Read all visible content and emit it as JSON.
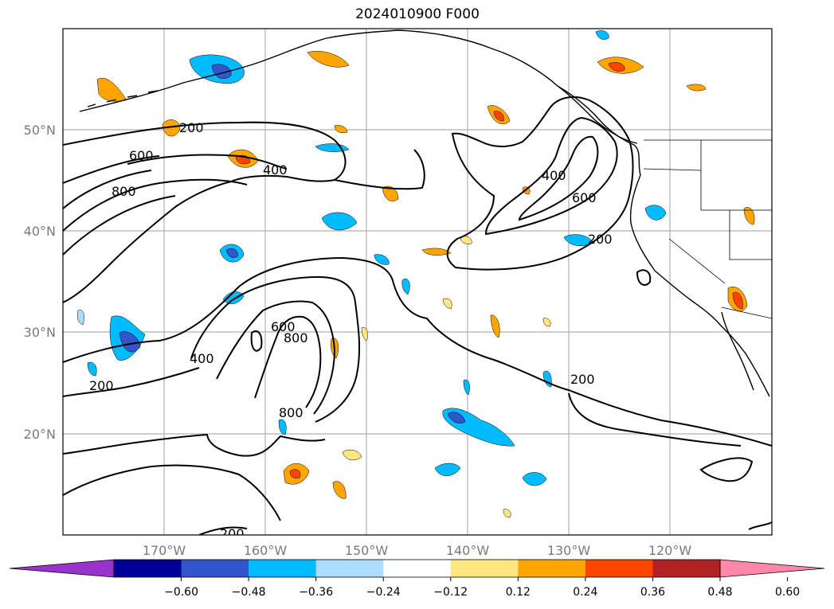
{
  "title": "2024010900 F000",
  "latitude_labels": [
    "50°N",
    "40°N",
    "30°N",
    "20°N"
  ],
  "longitude_labels": [
    "170°W",
    "160°W",
    "150°W",
    "140°W",
    "130°W",
    "120°W"
  ],
  "contour_labels": [
    "200",
    "600",
    "800",
    "400",
    "400",
    "600",
    "200",
    "400",
    "600",
    "800",
    "200",
    "800",
    "200",
    "200"
  ],
  "colorbar": {
    "tick_labels": [
      "−0.60",
      "−0.48",
      "−0.36",
      "−0.24",
      "−0.12",
      "0.12",
      "0.24",
      "0.36",
      "0.48",
      "0.60"
    ],
    "colors": [
      "#9933cc",
      "#000099",
      "#3355cc",
      "#00bbff",
      "#aaddff",
      "#ffffff",
      "#ffe680",
      "#ffa500",
      "#ff4400",
      "#b22222",
      "#ff88aa"
    ]
  }
}
